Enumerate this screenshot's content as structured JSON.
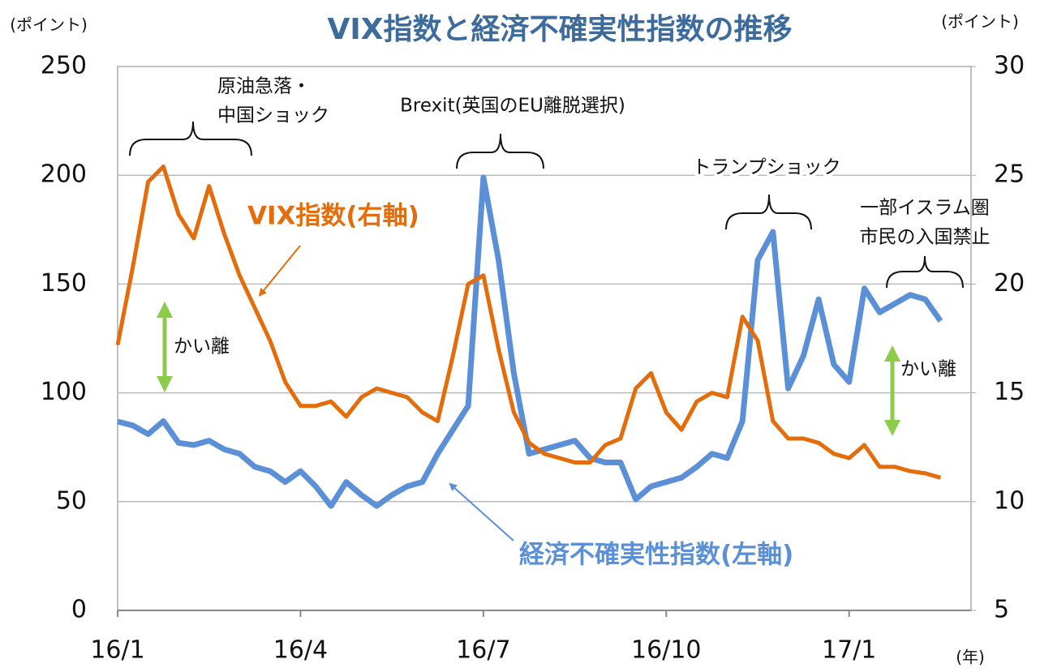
{
  "chart_data": {
    "type": "line",
    "title": "VIX指数と経済不確実性指数の推移",
    "y_label": "(ポイント)",
    "y2_label": "(ポイント)",
    "x_unit": "(年)",
    "xlim": [
      0,
      14
    ],
    "xticks": [
      {
        "value": 0,
        "label": "16/1"
      },
      {
        "value": 3,
        "label": "16/4"
      },
      {
        "value": 6,
        "label": "16/7"
      },
      {
        "value": 9,
        "label": "16/10"
      },
      {
        "value": 12,
        "label": "17/1"
      }
    ],
    "ylim": [
      0,
      250
    ],
    "yticks": [
      0,
      50,
      100,
      150,
      200,
      250
    ],
    "y2lim": [
      5,
      30
    ],
    "y2ticks": [
      5,
      10,
      15,
      20,
      25,
      30
    ],
    "grid": true,
    "x": [
      0,
      0.25,
      0.5,
      0.75,
      1,
      1.25,
      1.5,
      1.75,
      2,
      2.25,
      2.5,
      2.75,
      3,
      3.25,
      3.5,
      3.75,
      4,
      4.25,
      4.5,
      4.75,
      5,
      5.25,
      5.5,
      5.75,
      6,
      6.25,
      6.5,
      6.75,
      7,
      7.25,
      7.5,
      7.75,
      8,
      8.25,
      8.5,
      8.75,
      9,
      9.25,
      9.5,
      9.75,
      10,
      10.25,
      10.5,
      10.75,
      11,
      11.25,
      11.5,
      11.75,
      12,
      12.25,
      12.5,
      12.75,
      13,
      13.25,
      13.5
    ],
    "series": [
      {
        "name": "VIX指数(右軸)",
        "color": "#e46c0a",
        "axis": "y2",
        "values": [
          17.2,
          20.8,
          24.7,
          25.4,
          23.2,
          22.1,
          24.5,
          22.3,
          20.4,
          18.9,
          17.4,
          15.5,
          14.4,
          14.4,
          14.6,
          13.9,
          14.8,
          15.2,
          15.0,
          14.8,
          14.1,
          13.7,
          16.7,
          20.0,
          20.4,
          17.0,
          14.1,
          12.7,
          12.2,
          12.0,
          11.8,
          11.8,
          12.6,
          12.9,
          15.2,
          15.9,
          14.1,
          13.3,
          14.6,
          15.0,
          14.8,
          18.5,
          17.4,
          13.7,
          12.9,
          12.9,
          12.7,
          12.2,
          12.0,
          12.6,
          11.6,
          11.6,
          11.4,
          11.3,
          11.1
        ]
      },
      {
        "name": "経済不確実性指数(左軸)",
        "color": "#5b8fd6",
        "values": [
          86.8,
          85,
          81,
          87,
          77,
          76,
          78,
          74,
          72,
          66,
          64,
          59,
          64,
          57,
          48,
          59,
          53,
          48,
          53,
          57,
          59,
          72,
          83,
          94,
          199,
          161,
          109,
          72,
          74,
          76,
          78,
          70,
          68,
          68,
          51,
          57,
          59,
          61,
          66,
          72,
          70,
          87,
          161,
          174,
          102,
          117,
          143,
          113,
          105,
          148,
          137,
          141,
          145,
          143,
          133
        ]
      }
    ],
    "annotations": [
      {
        "lines": [
          "原油急落・",
          "中国ショック"
        ]
      },
      {
        "lines": [
          "Brexit(英国のEU離脱選択)"
        ]
      },
      {
        "lines": [
          "トランプショック"
        ]
      },
      {
        "lines": [
          "一部イスラム圏",
          "市民の入国禁止"
        ]
      },
      {
        "lines": [
          "かい離"
        ]
      },
      {
        "lines": [
          "かい離"
        ]
      }
    ]
  }
}
